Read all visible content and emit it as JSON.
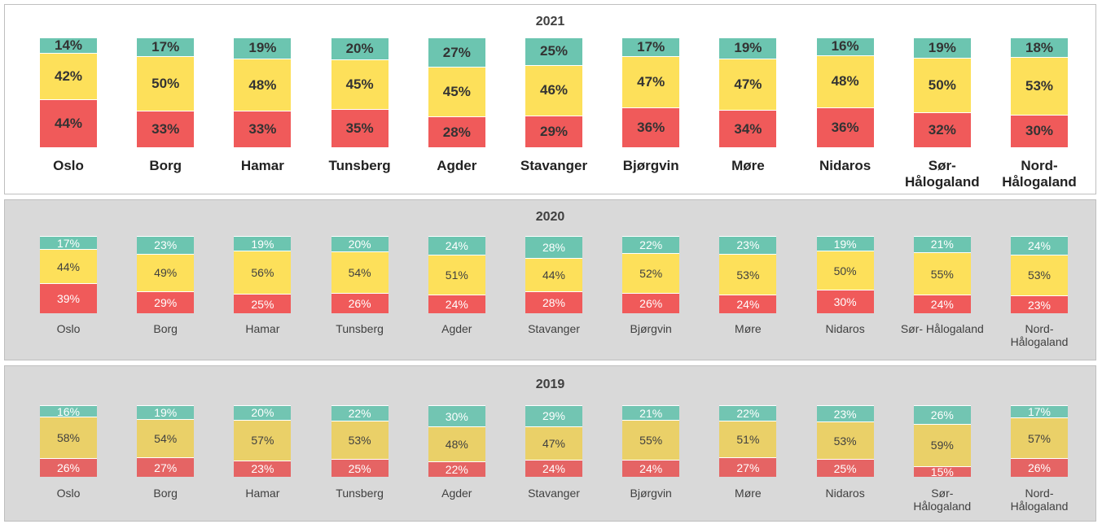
{
  "chart_data": [
    {
      "type": "stacked_bar",
      "title": "2021",
      "categories": [
        "Oslo",
        "Borg",
        "Hamar",
        "Tunsberg",
        "Agder",
        "Stavanger",
        "Bjørgvin",
        "Møre",
        "Nidaros",
        "Sør-\nHålogaland",
        "Nord-\nHålogaland"
      ],
      "series": [
        {
          "color": "#f05a5a",
          "values": [
            44,
            33,
            33,
            35,
            28,
            29,
            36,
            34,
            36,
            32,
            30
          ],
          "value_labels": [
            "44%",
            "33%",
            "33%",
            "35%",
            "28%",
            "29%",
            "36%",
            "34%",
            "36%",
            "32%",
            "30%"
          ]
        },
        {
          "color": "#fde05a",
          "values": [
            42,
            50,
            48,
            45,
            45,
            46,
            47,
            47,
            48,
            50,
            53
          ],
          "value_labels": [
            "42%",
            "50%",
            "48%",
            "45%",
            "45%",
            "46%",
            "47%",
            "47%",
            "48%",
            "50%",
            "53%"
          ]
        },
        {
          "color": "#6cc5b0",
          "values": [
            14,
            17,
            19,
            20,
            27,
            25,
            17,
            19,
            16,
            19,
            18
          ],
          "value_labels": [
            "14%",
            "17%",
            "19%",
            "20%",
            "27%",
            "25%",
            "17%",
            "19%",
            "16%",
            "19%",
            "18%"
          ]
        }
      ]
    },
    {
      "type": "stacked_bar",
      "title": "2020",
      "categories": [
        "Oslo",
        "Borg",
        "Hamar",
        "Tunsberg",
        "Agder",
        "Stavanger",
        "Bjørgvin",
        "Møre",
        "Nidaros",
        "Sør- Hålogaland",
        "Nord-\nHålogaland"
      ],
      "series": [
        {
          "color": "#f05a5a",
          "values": [
            39,
            29,
            25,
            26,
            24,
            28,
            26,
            24,
            30,
            24,
            23
          ],
          "value_labels": [
            "39%",
            "29%",
            "25%",
            "26%",
            "24%",
            "28%",
            "26%",
            "24%",
            "30%",
            "24%",
            "23%"
          ]
        },
        {
          "color": "#fde05a",
          "values": [
            44,
            49,
            56,
            54,
            51,
            44,
            52,
            53,
            50,
            55,
            53
          ],
          "value_labels": [
            "44%",
            "49%",
            "56%",
            "54%",
            "51%",
            "44%",
            "52%",
            "53%",
            "50%",
            "55%",
            "53%"
          ]
        },
        {
          "color": "#6cc5b0",
          "values": [
            17,
            23,
            19,
            20,
            24,
            28,
            22,
            23,
            19,
            21,
            24
          ],
          "value_labels": [
            "17%",
            "23%",
            "19%",
            "20%",
            "24%",
            "28%",
            "22%",
            "23%",
            "19%",
            "21%",
            "24%"
          ]
        }
      ]
    },
    {
      "type": "stacked_bar",
      "title": "2019",
      "categories": [
        "Oslo",
        "Borg",
        "Hamar",
        "Tunsberg",
        "Agder",
        "Stavanger",
        "Bjørgvin",
        "Møre",
        "Nidaros",
        "Sør-\nHålogaland",
        "Nord-\nHålogaland"
      ],
      "series": [
        {
          "color": "#e56464",
          "values": [
            26,
            27,
            23,
            25,
            22,
            24,
            24,
            27,
            25,
            15,
            26
          ],
          "value_labels": [
            "26%",
            "27%",
            "23%",
            "25%",
            "22%",
            "24%",
            "24%",
            "27%",
            "25%",
            "15%",
            "26%"
          ]
        },
        {
          "color": "#ead068",
          "values": [
            58,
            54,
            57,
            53,
            48,
            47,
            55,
            51,
            53,
            59,
            57
          ],
          "value_labels": [
            "58%",
            "54%",
            "57%",
            "53%",
            "48%",
            "47%",
            "55%",
            "51%",
            "53%",
            "59%",
            "57%"
          ]
        },
        {
          "color": "#72c5b2",
          "values": [
            16,
            19,
            20,
            22,
            30,
            29,
            21,
            22,
            23,
            26,
            17
          ],
          "value_labels": [
            "16%",
            "19%",
            "20%",
            "22%",
            "30%",
            "29%",
            "21%",
            "22%",
            "23%",
            "26%",
            "17%"
          ]
        }
      ]
    }
  ]
}
